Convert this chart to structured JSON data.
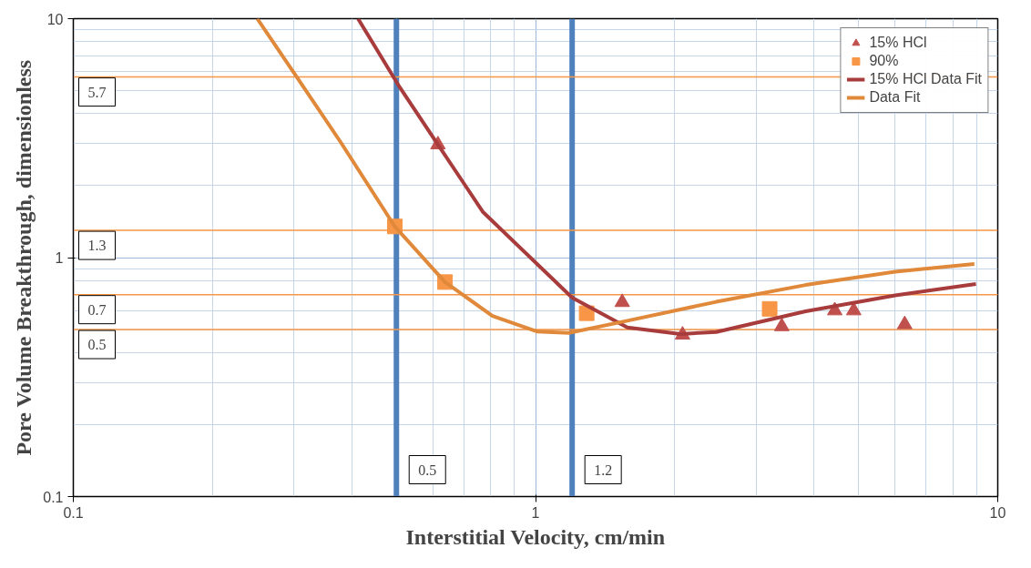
{
  "chart_data": {
    "type": "scatter",
    "xlabel": "Interstitial Velocity, cm/min",
    "ylabel": "Pore Volume Breakthrough, dimensionless",
    "log": "xy",
    "xlim": [
      0.1,
      10
    ],
    "ylim": [
      0.1,
      10
    ],
    "xticks": [
      0.1,
      1,
      10
    ],
    "yticks": [
      0.1,
      1,
      10
    ],
    "grid": true,
    "legend": "top right",
    "series": [
      {
        "name": "15% HCl",
        "marker": "triangle",
        "color": "#c0504d",
        "x": [
          0.615,
          1.54,
          2.08,
          3.41,
          4.44,
          4.88,
          6.29
        ],
        "values": [
          2.97,
          0.65,
          0.475,
          0.515,
          0.6,
          0.6,
          0.525
        ]
      },
      {
        "name": "90%",
        "marker": "square",
        "color": "#f79646",
        "x": [
          0.496,
          0.637,
          1.29,
          3.21
        ],
        "values": [
          1.35,
          0.79,
          0.585,
          0.61
        ]
      },
      {
        "name": "15% HCl Data Fit",
        "type": "line",
        "color": "#a83c3c",
        "x": [
          0.413,
          0.505,
          0.615,
          0.77,
          1.2,
          1.58,
          2.06,
          2.46,
          3.84,
          6.0,
          8.97
        ],
        "values": [
          10,
          5.27,
          2.97,
          1.55,
          0.68,
          0.51,
          0.479,
          0.488,
          0.596,
          0.695,
          0.776
        ]
      },
      {
        "name": "Data Fit",
        "type": "line",
        "color": "#e0893a",
        "x": [
          0.25,
          0.303,
          0.378,
          0.496,
          0.637,
          0.807,
          1.01,
          1.18,
          1.58,
          2.46,
          3.84,
          6.0,
          8.9
        ],
        "values": [
          10,
          5.77,
          3.06,
          1.35,
          0.79,
          0.57,
          0.49,
          0.484,
          0.544,
          0.653,
          0.768,
          0.873,
          0.94
        ]
      }
    ],
    "ref_lines": [
      {
        "axis": "x",
        "value": 0.5,
        "label": "0.5",
        "color": "#4f81bd"
      },
      {
        "axis": "x",
        "value": 1.2,
        "label": "1.2",
        "color": "#4f81bd"
      },
      {
        "axis": "y",
        "value": 5.7,
        "label": "5.7",
        "color": "#f79646"
      },
      {
        "axis": "y",
        "value": 1.3,
        "label": "1.3",
        "color": "#f79646"
      },
      {
        "axis": "y",
        "value": 0.7,
        "label": "0.7",
        "color": "#f79646"
      },
      {
        "axis": "y",
        "value": 0.5,
        "label": "0.5",
        "color": "#f79646"
      }
    ]
  }
}
